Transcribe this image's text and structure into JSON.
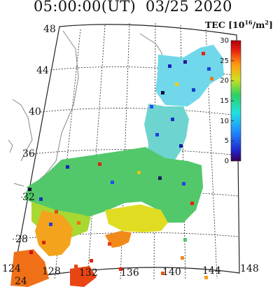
{
  "title": {
    "time": "05:00:00(UT)",
    "date": "03/25 2020"
  },
  "colorbar": {
    "label_main": "TEC [10",
    "label_exp": "16",
    "label_unit": "/m",
    "label_unit_exp": "2",
    "label_close": "]",
    "ticks": [
      "30",
      "25",
      "20",
      "15",
      "10",
      "5",
      "0"
    ],
    "range": [
      0,
      30
    ],
    "colors": [
      "#3a0050",
      "#2020c8",
      "#2090ff",
      "#20e0e0",
      "#30d060",
      "#d0e020",
      "#ff9a10",
      "#e82010",
      "#b00010"
    ]
  },
  "axes": {
    "latitudes": [
      "48",
      "44",
      "40",
      "36",
      "32",
      "28",
      "24"
    ],
    "longitudes": [
      "124",
      "128",
      "132",
      "136",
      "140",
      "144",
      "148"
    ]
  }
}
